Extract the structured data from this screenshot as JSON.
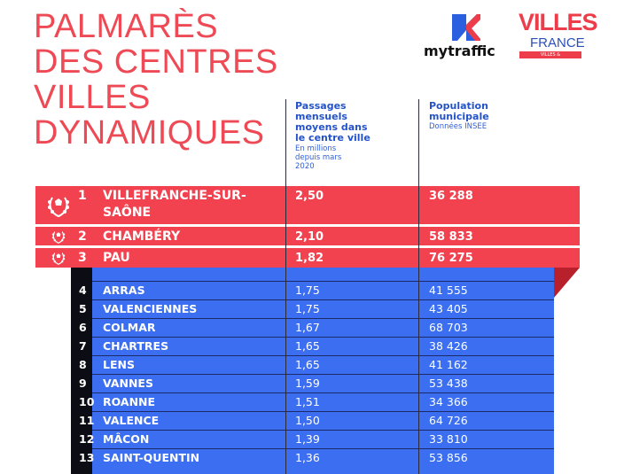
{
  "header": {
    "title_lines": [
      "PALMARÈS",
      "DES CENTRES",
      "VILLES",
      "DYNAMIQUES"
    ],
    "logo_mytraffic": "mytraffic",
    "logo_villes": "VILLES",
    "logo_france": "FRANCE",
    "logo_tagline": "VILLES & AGGLOMÉRATIONS"
  },
  "columns": [
    {
      "title": "Passages mensuels moyens dans le centre ville",
      "note": "En millions depuis mars 2020"
    },
    {
      "title": "Population municipale",
      "note": "Données INSEE"
    }
  ],
  "podium": [
    {
      "rank": 1,
      "city": "VILLEFRANCHE-SUR-SAÔNE",
      "passages": "2,50",
      "population": "36 288"
    },
    {
      "rank": 2,
      "city": "CHAMBÉRY",
      "passages": "2,10",
      "population": "58 833"
    },
    {
      "rank": 3,
      "city": "PAU",
      "passages": "1,82",
      "population": "76 275"
    }
  ],
  "rows": [
    {
      "rank": 4,
      "city": "ARRAS",
      "passages": "1,75",
      "population": "41 555"
    },
    {
      "rank": 5,
      "city": "VALENCIENNES",
      "passages": "1,75",
      "population": "43 405"
    },
    {
      "rank": 6,
      "city": "COLMAR",
      "passages": "1,67",
      "population": "68 703"
    },
    {
      "rank": 7,
      "city": "CHARTRES",
      "passages": "1,65",
      "population": "38 426"
    },
    {
      "rank": 8,
      "city": "LENS",
      "passages": "1,65",
      "population": "41 162"
    },
    {
      "rank": 9,
      "city": "VANNES",
      "passages": "1,59",
      "population": "53 438"
    },
    {
      "rank": 10,
      "city": "ROANNE",
      "passages": "1,51",
      "population": "34 366"
    },
    {
      "rank": 11,
      "city": "VALENCE",
      "passages": "1,50",
      "population": "64 726"
    },
    {
      "rank": 12,
      "city": "MÂCON",
      "passages": "1,39",
      "population": "33 810"
    },
    {
      "rank": 13,
      "city": "SAINT-QUENTIN",
      "passages": "1,36",
      "population": "53 856"
    }
  ]
}
